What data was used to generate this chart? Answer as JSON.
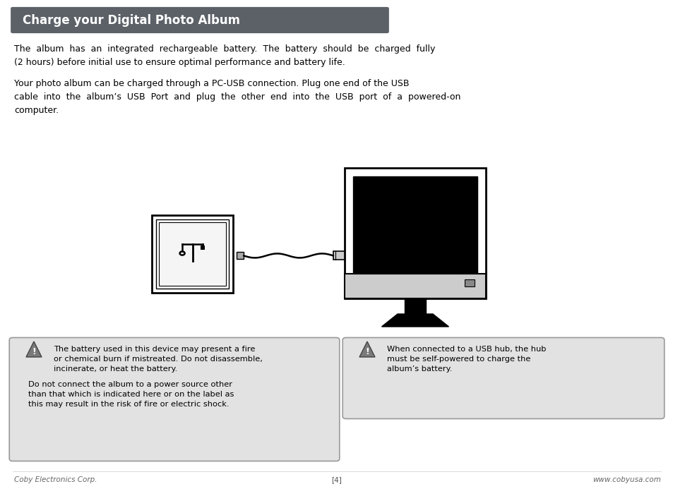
{
  "title": "Charge your Digital Photo Album",
  "title_bg_color": "#5c6168",
  "title_text_color": "#ffffff",
  "body_text_color": "#000000",
  "background_color": "#ffffff",
  "para1_l1": "The  album  has  an  integrated  rechargeable  battery.  The  battery  should  be  charged  fully",
  "para1_l2": "(2 hours) before initial use to ensure optimal performance and battery life.",
  "para2_l1": "Your photo album can be charged through a PC-USB connection. Plug one end of the USB",
  "para2_l2": "cable  into  the  album’s  USB  Port  and  plug  the  other  end  into  the  USB  port  of  a  powered-on",
  "para2_l3": "computer.",
  "warn1_l1": "The battery used in this device may present a fire",
  "warn1_l2": "or chemical burn if mistreated. Do not disassemble,",
  "warn1_l3": "incinerate, or heat the battery.",
  "warn1_l4": "Do not connect the album to a power source other",
  "warn1_l5": "than that which is indicated here or on the label as",
  "warn1_l6": "this may result in the risk of fire or electric shock.",
  "warn2_l1": "When connected to a USB hub, the hub",
  "warn2_l2": "must be self-powered to charge the",
  "warn2_l3": "album’s battery.",
  "footer_left": "Coby Electronics Corp.",
  "footer_center": "[4]",
  "footer_right": "www.cobyusa.com",
  "warn_box_color": "#e2e2e2",
  "warn_border_color": "#999999"
}
